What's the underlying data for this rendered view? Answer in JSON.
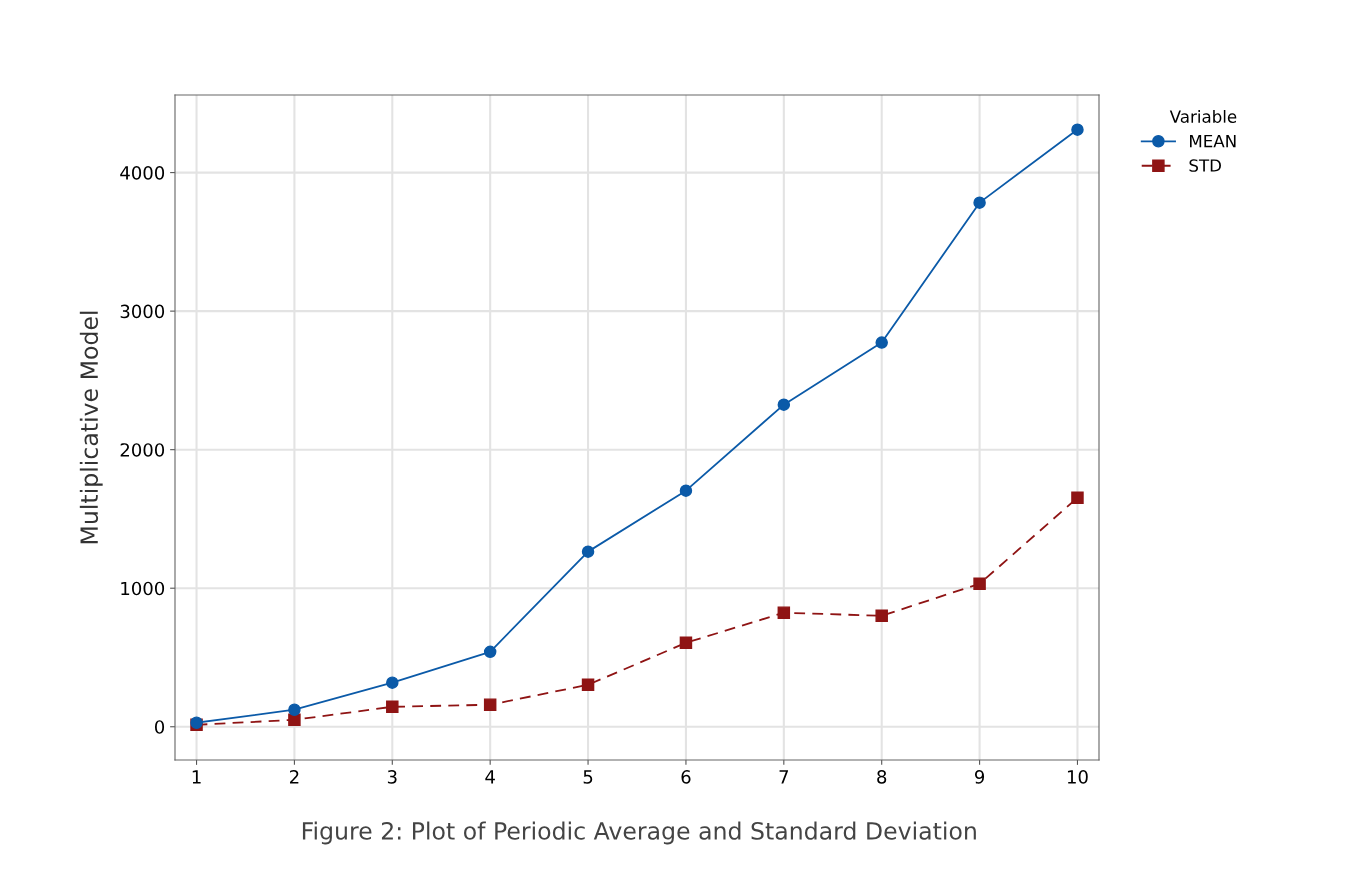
{
  "chart_data": {
    "type": "line",
    "ylabel": "Multiplicative Model",
    "legend_title": "Variable",
    "annotations": [
      "Figure 2: Plot of Periodic Average and Standard Deviation"
    ],
    "x": [
      1,
      2,
      3,
      4,
      5,
      6,
      7,
      8,
      9,
      10
    ],
    "xlim": [
      0.78,
      10.22
    ],
    "xticks": [
      1,
      2,
      3,
      4,
      5,
      6,
      7,
      8,
      9,
      10
    ],
    "ylim": [
      -240,
      4560
    ],
    "yticks": [
      0,
      1000,
      2000,
      3000,
      4000
    ],
    "grid": true,
    "legend": "top right",
    "series": [
      {
        "name": "MEAN",
        "color": "#0b5aa8",
        "marker": "circle",
        "line_style": "solid",
        "values": [
          29,
          123,
          318,
          541,
          1264,
          1704,
          2325,
          2773,
          3783,
          4310
        ]
      },
      {
        "name": "STD",
        "color": "#8f1414",
        "marker": "square",
        "line_style": "dashed",
        "values": [
          14,
          50,
          144,
          159,
          303,
          606,
          823,
          801,
          1032,
          1653
        ]
      }
    ]
  }
}
